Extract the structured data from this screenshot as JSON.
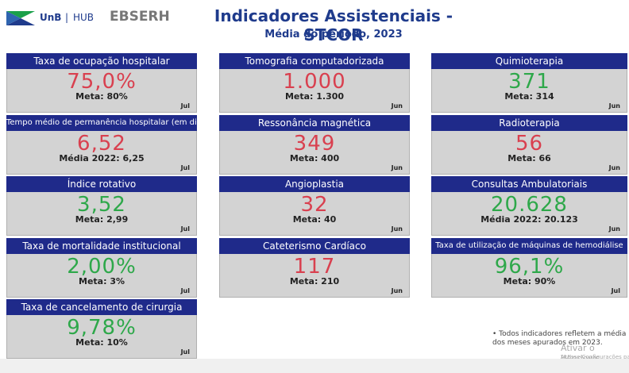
{
  "header": {
    "logo_unb": "UnB",
    "logo_hub": "HUB",
    "logo_ebserh": "EBSERH",
    "title": "Indicadores Assistenciais - STCOR",
    "subtitle": "Média do período, 2023"
  },
  "columns": [
    [
      {
        "title": "Taxa de ocupação hospitalar",
        "value": "75,0%",
        "target": "Meta: 80%",
        "month": "Jul",
        "color": "#d9404f"
      },
      {
        "title": "Tempo médio de permanência hospitalar (em dias)",
        "value": "6,52",
        "target": "Média 2022: 6,25",
        "month": "Jul",
        "color": "#d9404f"
      },
      {
        "title": "Índice rotativo",
        "value": "3,52",
        "target": "Meta: 2,99",
        "month": "Jul",
        "color": "#2ea84a"
      },
      {
        "title": "Taxa de mortalidade institucional",
        "value": "2,00%",
        "target": "Meta: 3%",
        "month": "Jul",
        "color": "#2ea84a"
      },
      {
        "title": "Taxa de cancelamento de cirurgia",
        "value": "9,78%",
        "target": "Meta: 10%",
        "month": "Jul",
        "color": "#2ea84a"
      }
    ],
    [
      {
        "title": "Tomografia computadorizada",
        "value": "1.000",
        "target": "Meta: 1.300",
        "month": "Jun",
        "color": "#d9404f"
      },
      {
        "title": "Ressonância magnética",
        "value": "349",
        "target": "Meta: 400",
        "month": "Jun",
        "color": "#d9404f"
      },
      {
        "title": "Angioplastia",
        "value": "32",
        "target": "Meta: 40",
        "month": "Jun",
        "color": "#d9404f"
      },
      {
        "title": "Cateterismo Cardíaco",
        "value": "117",
        "target": "Meta: 210",
        "month": "Jun",
        "color": "#d9404f"
      }
    ],
    [
      {
        "title": "Quimioterapia",
        "value": "371",
        "target": "Meta: 314",
        "month": "Jun",
        "color": "#2ea84a"
      },
      {
        "title": "Radioterapia",
        "value": "56",
        "target": "Meta: 66",
        "month": "Jun",
        "color": "#d9404f"
      },
      {
        "title": "Consultas Ambulatoriais",
        "value": "20.628",
        "target": "Média 2022: 20.123",
        "month": "Jun",
        "color": "#2ea84a"
      },
      {
        "title": "Taxa de utilização de máquinas de hemodiálise",
        "value": "96,1%",
        "target": "Meta: 90%",
        "month": "Jul",
        "color": "#2ea84a"
      }
    ]
  ],
  "footnote": "• Todos indicadores refletem a média dos meses apurados em 2023.",
  "watermark": {
    "title": "Ativar o Windows",
    "subtitle": "Acesse Configurações pa"
  }
}
